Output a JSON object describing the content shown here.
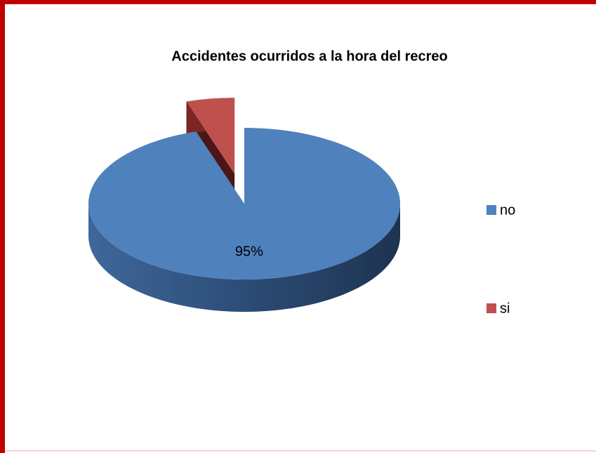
{
  "chart_data": {
    "type": "pie3d",
    "title": "Accidentes ocurridos a la hora del recreo",
    "categories": [
      "no",
      "si"
    ],
    "values": [
      95,
      5
    ],
    "value_labels": [
      "95%",
      null
    ],
    "colors": [
      "#4f81bd",
      "#c0504d"
    ],
    "legend": "right"
  }
}
